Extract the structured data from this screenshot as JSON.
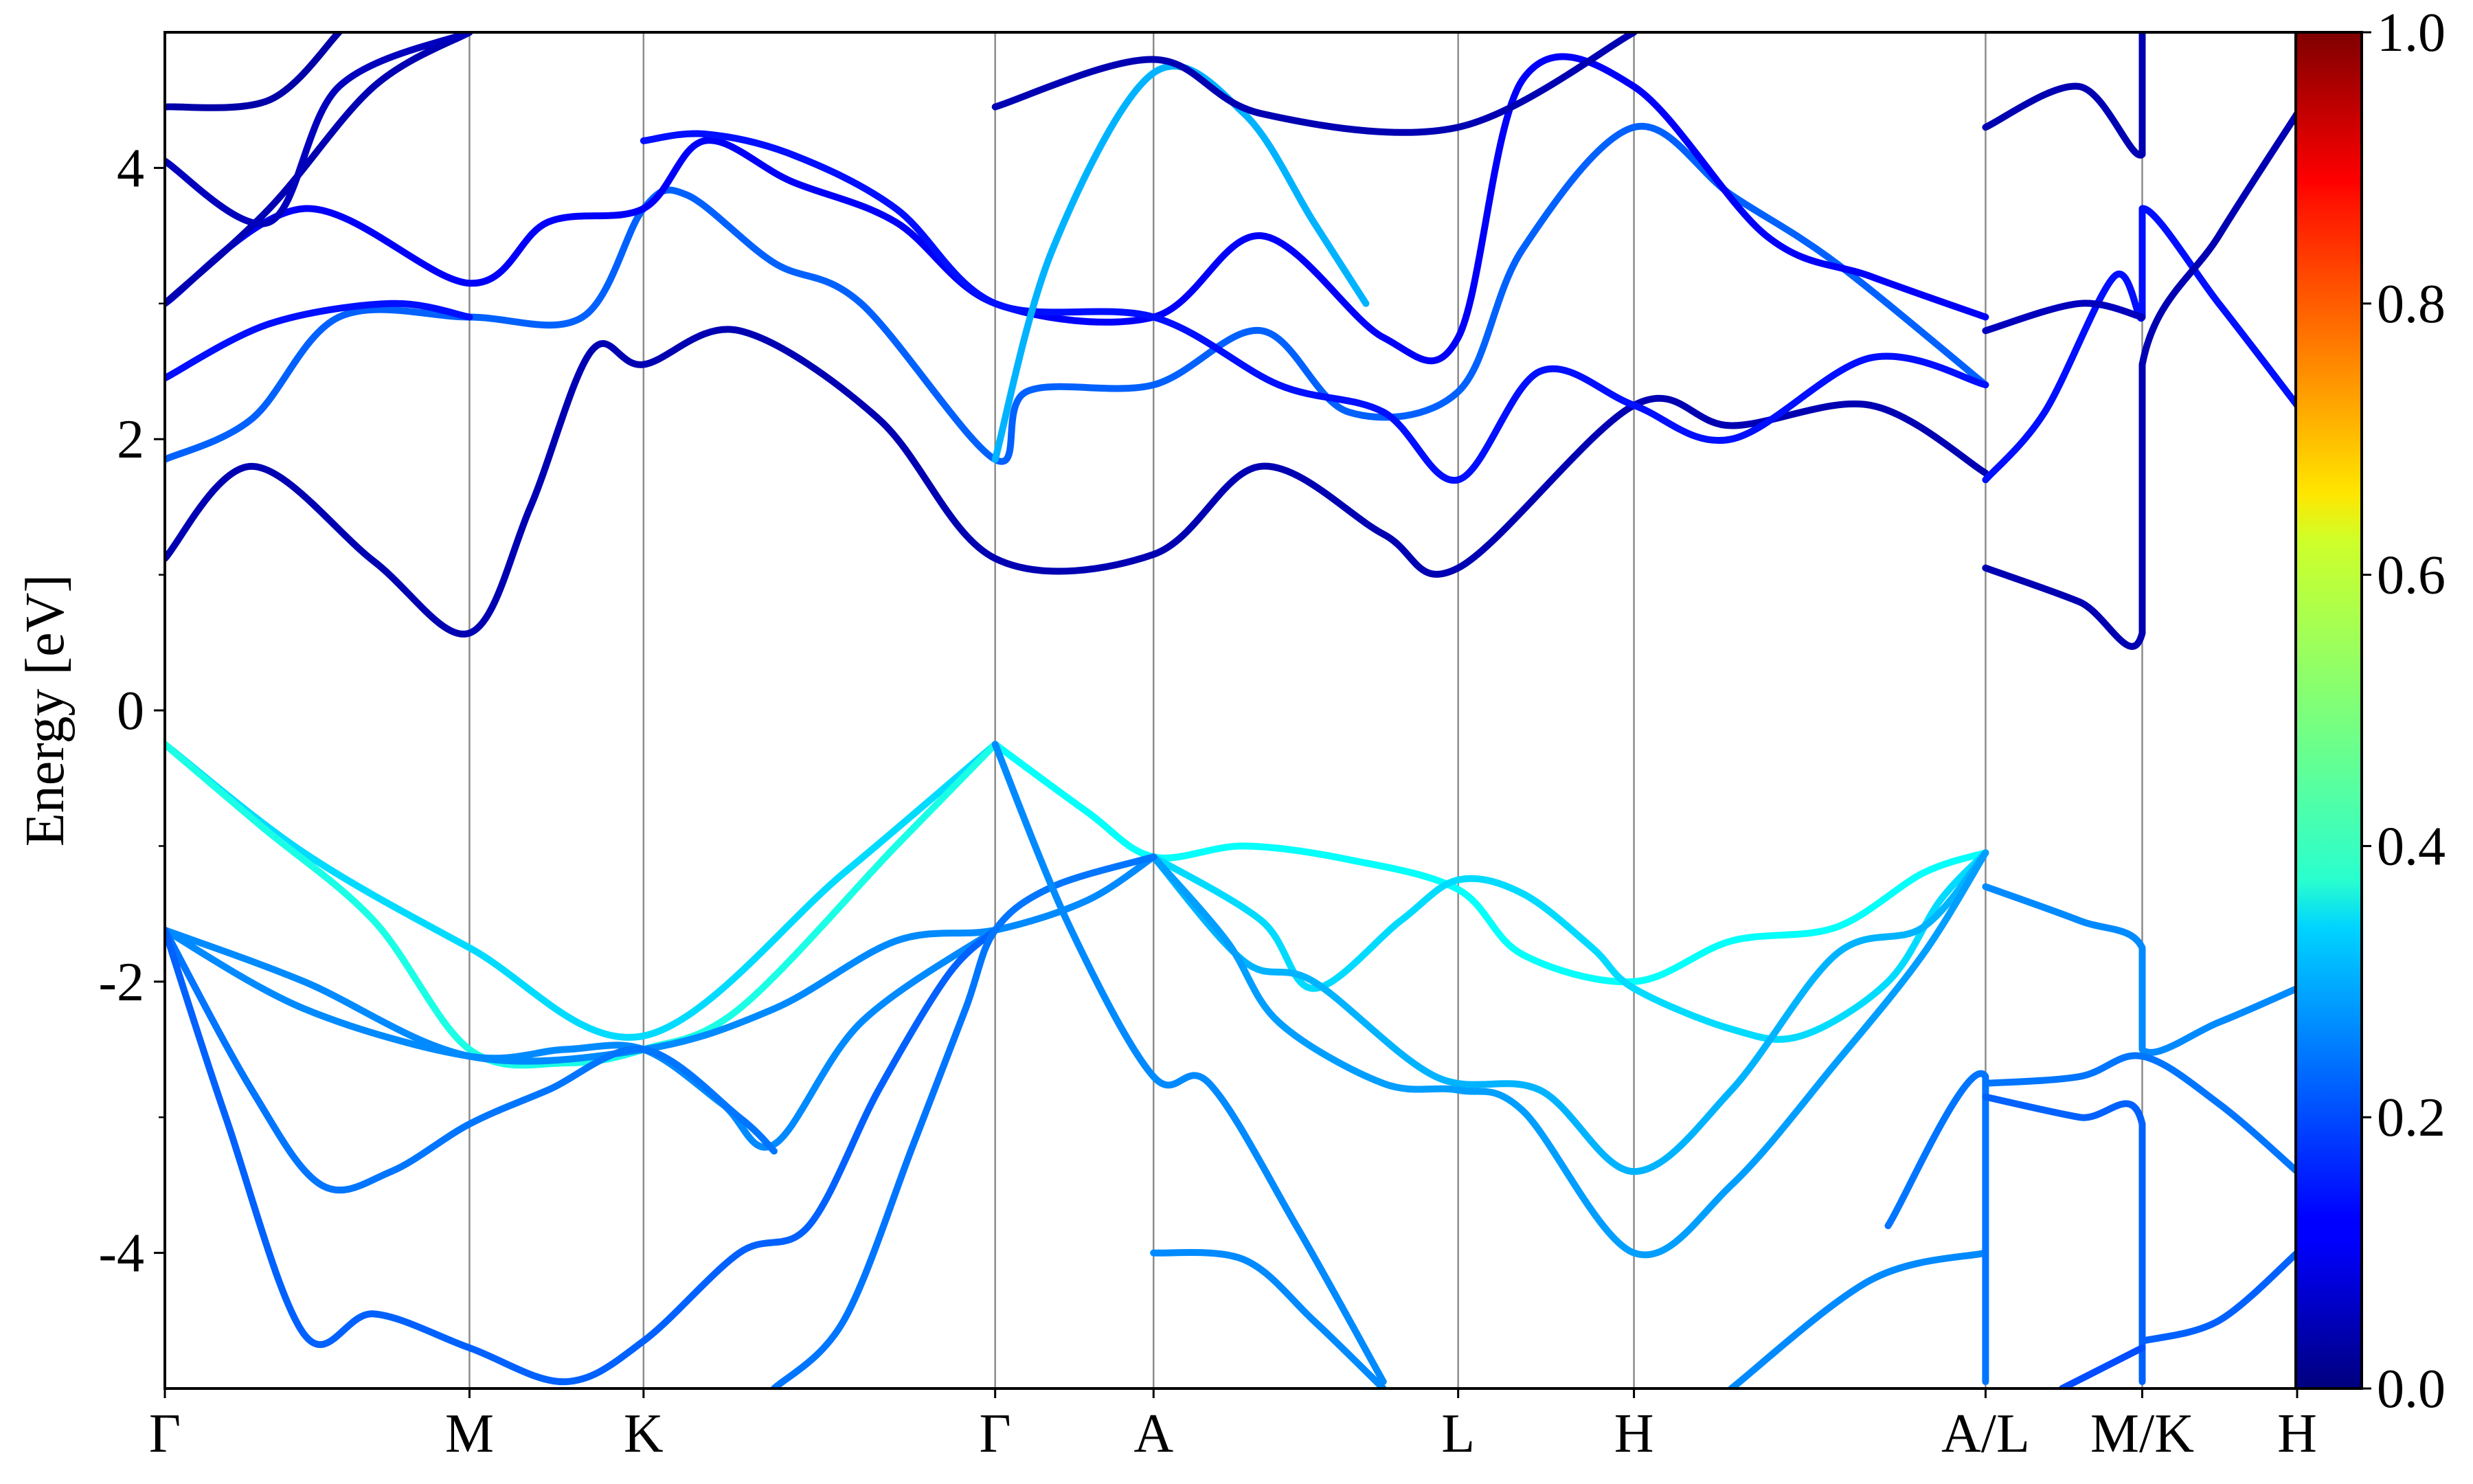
{
  "chart_data": {
    "type": "line",
    "title": "",
    "xlabel": "",
    "ylabel": "Energy [eV]",
    "ylim": [
      -5,
      5
    ],
    "yticks": [
      4,
      2,
      0,
      -2,
      -4
    ],
    "yticks_minor": [
      3,
      1,
      -1,
      -3
    ],
    "ytick_labels": [
      "4",
      "2",
      "0",
      "-2",
      "-4"
    ],
    "xlim": [
      0,
      12.25
    ],
    "kpath": [
      {
        "label": "Γ",
        "x": 0
      },
      {
        "label": "M",
        "x": 1.75
      },
      {
        "label": "K",
        "x": 2.75
      },
      {
        "label": "Γ",
        "x": 4.77
      },
      {
        "label": "A",
        "x": 5.68
      },
      {
        "label": "L",
        "x": 7.43
      },
      {
        "label": "H",
        "x": 8.44
      },
      {
        "label": "A/L",
        "x": 10.46
      },
      {
        "label": "M/K",
        "x": 11.36
      },
      {
        "label": "H",
        "x": 12.25
      }
    ],
    "colorbar": {
      "colormap": "jet",
      "range": [
        0.0,
        1.0
      ],
      "ticks": [
        "0.0",
        "0.2",
        "0.4",
        "0.6",
        "0.8",
        "1.0"
      ],
      "tick_values": [
        0.0,
        0.2,
        0.4,
        0.6,
        0.8,
        1.0
      ]
    },
    "colors": {
      "background": "#ffffff",
      "axes": "#000000",
      "vline": "#8c8c8c"
    },
    "series": [
      {
        "w": 0.34,
        "points": [
          [
            0,
            -0.25
          ],
          [
            0.8,
            -1.05
          ],
          [
            1.75,
            -1.75
          ],
          [
            2.75,
            -2.4
          ],
          [
            3.9,
            -1.2
          ],
          [
            4.77,
            -0.25
          ]
        ]
      },
      {
        "w": 0.4,
        "points": [
          [
            0,
            -0.25
          ],
          [
            0.55,
            -0.85
          ],
          [
            1.2,
            -1.55
          ],
          [
            1.75,
            -2.5
          ],
          [
            2.3,
            -2.6
          ],
          [
            2.75,
            -2.5
          ],
          [
            3.3,
            -2.2
          ],
          [
            4.2,
            -1.0
          ],
          [
            4.77,
            -0.25
          ]
        ]
      },
      {
        "w": 0.38,
        "points": [
          [
            4.77,
            -0.25
          ],
          [
            5.3,
            -0.75
          ],
          [
            5.68,
            -1.08
          ],
          [
            6.2,
            -1.0
          ],
          [
            6.8,
            -1.1
          ],
          [
            7.43,
            -1.32
          ],
          [
            7.8,
            -1.8
          ],
          [
            8.44,
            -2.0
          ],
          [
            9.0,
            -1.7
          ],
          [
            9.6,
            -1.6
          ],
          [
            10.1,
            -1.2
          ],
          [
            10.46,
            -1.05
          ]
        ]
      },
      {
        "w": 0.34,
        "points": [
          [
            5.68,
            -1.08
          ],
          [
            6.3,
            -1.55
          ],
          [
            6.6,
            -2.05
          ],
          [
            7.1,
            -1.55
          ],
          [
            7.43,
            -1.25
          ],
          [
            7.8,
            -1.35
          ],
          [
            8.2,
            -1.75
          ],
          [
            8.44,
            -2.05
          ],
          [
            9.0,
            -2.35
          ],
          [
            9.4,
            -2.4
          ],
          [
            9.9,
            -2.0
          ],
          [
            10.2,
            -1.4
          ],
          [
            10.46,
            -1.05
          ]
        ]
      },
      {
        "w": 0.3,
        "points": [
          [
            5.68,
            -1.08
          ],
          [
            6.2,
            -1.85
          ],
          [
            6.6,
            -2.0
          ],
          [
            7.3,
            -2.7
          ],
          [
            7.9,
            -2.8
          ],
          [
            8.44,
            -3.4
          ],
          [
            9.0,
            -2.8
          ],
          [
            9.6,
            -1.8
          ],
          [
            10.1,
            -1.6
          ],
          [
            10.46,
            -1.05
          ]
        ]
      },
      {
        "w": 0.28,
        "points": [
          [
            5.68,
            -1.08
          ],
          [
            6.1,
            -1.7
          ],
          [
            6.4,
            -2.3
          ],
          [
            7.0,
            -2.75
          ],
          [
            7.43,
            -2.8
          ],
          [
            7.8,
            -2.95
          ],
          [
            8.44,
            -4.0
          ],
          [
            9.0,
            -3.5
          ],
          [
            9.6,
            -2.6
          ],
          [
            10.1,
            -1.8
          ],
          [
            10.46,
            -1.05
          ]
        ]
      },
      {
        "w": 0.26,
        "points": [
          [
            0,
            -1.62
          ],
          [
            0.8,
            -2.0
          ],
          [
            1.75,
            -2.55
          ],
          [
            2.75,
            -2.5
          ],
          [
            3.5,
            -2.2
          ],
          [
            4.2,
            -1.7
          ],
          [
            4.77,
            -1.62
          ],
          [
            5.3,
            -1.4
          ],
          [
            5.68,
            -1.08
          ]
        ]
      },
      {
        "w": 0.26,
        "points": [
          [
            0,
            -1.62
          ],
          [
            0.8,
            -2.2
          ],
          [
            1.75,
            -2.55
          ],
          [
            2.3,
            -2.5
          ],
          [
            2.75,
            -2.5
          ],
          [
            3.2,
            -2.9
          ],
          [
            3.5,
            -3.2
          ],
          [
            4.0,
            -2.3
          ],
          [
            4.77,
            -1.62
          ]
        ]
      },
      {
        "w": 0.24,
        "points": [
          [
            0,
            -1.62
          ],
          [
            0.5,
            -2.8
          ],
          [
            0.9,
            -3.5
          ],
          [
            1.3,
            -3.4
          ],
          [
            1.75,
            -3.05
          ],
          [
            2.2,
            -2.8
          ],
          [
            2.75,
            -2.5
          ],
          [
            3.3,
            -3.0
          ],
          [
            3.5,
            -3.25
          ]
        ]
      },
      {
        "w": 0.22,
        "points": [
          [
            0,
            -1.62
          ],
          [
            0.35,
            -3.0
          ],
          [
            0.8,
            -4.6
          ],
          [
            1.2,
            -4.45
          ],
          [
            1.75,
            -4.7
          ],
          [
            2.3,
            -4.95
          ],
          [
            2.75,
            -4.65
          ],
          [
            3.3,
            -4.0
          ],
          [
            3.7,
            -3.8
          ],
          [
            4.1,
            -2.8
          ],
          [
            4.5,
            -1.95
          ],
          [
            4.77,
            -1.62
          ]
        ]
      },
      {
        "w": 0.24,
        "points": [
          [
            3.5,
            -5.0
          ],
          [
            3.9,
            -4.5
          ],
          [
            4.3,
            -3.2
          ],
          [
            4.6,
            -2.2
          ],
          [
            4.77,
            -1.62
          ],
          [
            5.1,
            -1.3
          ],
          [
            5.68,
            -1.08
          ]
        ]
      },
      {
        "w": 0.26,
        "points": [
          [
            4.77,
            -0.25
          ],
          [
            5.2,
            -1.6
          ],
          [
            5.68,
            -2.7
          ],
          [
            6.0,
            -2.75
          ],
          [
            6.5,
            -3.8
          ],
          [
            7.0,
            -4.95
          ]
        ]
      },
      {
        "w": 0.26,
        "points": [
          [
            5.68,
            -4.0
          ],
          [
            6.2,
            -4.05
          ],
          [
            6.6,
            -4.5
          ],
          [
            7.0,
            -5.0
          ]
        ]
      },
      {
        "w": 0.26,
        "points": [
          [
            9.0,
            -5.0
          ],
          [
            9.8,
            -4.2
          ],
          [
            10.46,
            -4.0
          ]
        ]
      },
      {
        "w": 0.24,
        "points": [
          [
            9.9,
            -3.8
          ],
          [
            10.46,
            -2.7
          ],
          [
            10.46,
            -4.95
          ]
        ]
      },
      {
        "w": 0.26,
        "points": [
          [
            10.46,
            -1.3
          ],
          [
            11.0,
            -1.55
          ],
          [
            11.36,
            -1.75
          ],
          [
            11.36,
            -2.5
          ],
          [
            11.8,
            -2.3
          ],
          [
            12.25,
            -2.05
          ]
        ]
      },
      {
        "w": 0.24,
        "points": [
          [
            10.46,
            -2.75
          ],
          [
            11.0,
            -2.7
          ],
          [
            11.36,
            -2.55
          ],
          [
            11.8,
            -2.9
          ],
          [
            12.25,
            -3.4
          ]
        ]
      },
      {
        "w": 0.22,
        "points": [
          [
            10.46,
            -2.85
          ],
          [
            11.0,
            -3.0
          ],
          [
            11.36,
            -3.05
          ],
          [
            11.36,
            -4.95
          ]
        ]
      },
      {
        "w": 0.22,
        "points": [
          [
            11.36,
            -4.65
          ],
          [
            11.8,
            -4.5
          ],
          [
            12.25,
            -4.0
          ]
        ]
      },
      {
        "w": 0.2,
        "points": [
          [
            10.9,
            -5.0
          ],
          [
            11.36,
            -4.7
          ]
        ]
      },
      {
        "w": 0.05,
        "points": [
          [
            0,
            1.12
          ],
          [
            0.5,
            1.8
          ],
          [
            1.2,
            1.1
          ],
          [
            1.75,
            0.57
          ],
          [
            2.1,
            1.5
          ],
          [
            2.45,
            2.65
          ],
          [
            2.75,
            2.55
          ],
          [
            3.3,
            2.8
          ],
          [
            4.1,
            2.15
          ],
          [
            4.77,
            1.12
          ],
          [
            5.68,
            1.15
          ],
          [
            6.3,
            1.8
          ],
          [
            7.0,
            1.3
          ],
          [
            7.43,
            1.05
          ],
          [
            8.44,
            2.25
          ],
          [
            9.0,
            2.1
          ],
          [
            9.8,
            2.25
          ],
          [
            10.46,
            1.75
          ]
        ]
      },
      {
        "w": 0.22,
        "points": [
          [
            0,
            1.85
          ],
          [
            0.5,
            2.15
          ],
          [
            1.0,
            2.9
          ],
          [
            1.75,
            2.9
          ],
          [
            2.4,
            2.9
          ],
          [
            2.75,
            3.7
          ],
          [
            3.0,
            3.8
          ],
          [
            3.5,
            3.3
          ],
          [
            4.0,
            3.0
          ],
          [
            4.77,
            1.85
          ],
          [
            4.95,
            2.35
          ],
          [
            5.68,
            2.4
          ],
          [
            6.3,
            2.8
          ],
          [
            6.8,
            2.2
          ],
          [
            7.43,
            2.35
          ],
          [
            7.8,
            3.4
          ],
          [
            8.44,
            4.3
          ],
          [
            9.0,
            3.8
          ],
          [
            9.6,
            3.3
          ],
          [
            10.46,
            2.4
          ]
        ]
      },
      {
        "w": 0.14,
        "points": [
          [
            0,
            2.45
          ],
          [
            0.6,
            2.85
          ],
          [
            1.3,
            3.0
          ],
          [
            1.75,
            2.9
          ]
        ]
      },
      {
        "w": 0.12,
        "points": [
          [
            0,
            3.0
          ],
          [
            0.8,
            3.7
          ],
          [
            1.75,
            3.15
          ],
          [
            2.2,
            3.6
          ],
          [
            2.75,
            3.7
          ],
          [
            3.1,
            4.2
          ],
          [
            3.6,
            3.9
          ],
          [
            4.2,
            3.6
          ],
          [
            4.77,
            3.0
          ],
          [
            5.68,
            2.9
          ],
          [
            6.3,
            3.5
          ],
          [
            7.0,
            2.75
          ],
          [
            7.43,
            2.75
          ],
          [
            7.8,
            4.65
          ],
          [
            8.44,
            4.6
          ],
          [
            9.2,
            3.5
          ],
          [
            9.8,
            3.2
          ],
          [
            10.46,
            2.9
          ]
        ]
      },
      {
        "w": 0.05,
        "points": [
          [
            0,
            3.0
          ],
          [
            0.6,
            3.7
          ],
          [
            1.2,
            4.6
          ],
          [
            1.75,
            5.0
          ]
        ]
      },
      {
        "w": 0.04,
        "points": [
          [
            0,
            4.45
          ],
          [
            0.6,
            4.5
          ],
          [
            1.0,
            5.0
          ]
        ]
      },
      {
        "w": 0.06,
        "points": [
          [
            0,
            4.05
          ],
          [
            0.6,
            3.6
          ],
          [
            1.0,
            4.6
          ],
          [
            1.75,
            5.0
          ]
        ]
      },
      {
        "w": 0.14,
        "points": [
          [
            2.75,
            4.2
          ],
          [
            3.1,
            4.25
          ],
          [
            3.6,
            4.1
          ],
          [
            4.2,
            3.7
          ],
          [
            4.77,
            3.0
          ],
          [
            5.68,
            2.9
          ],
          [
            6.4,
            2.4
          ],
          [
            7.0,
            2.2
          ],
          [
            7.43,
            1.7
          ],
          [
            7.9,
            2.5
          ],
          [
            8.44,
            2.25
          ],
          [
            9.0,
            2.0
          ],
          [
            9.8,
            2.6
          ],
          [
            10.46,
            2.4
          ]
        ]
      },
      {
        "w": 0.3,
        "points": [
          [
            4.77,
            1.85
          ],
          [
            5.1,
            3.4
          ],
          [
            5.68,
            4.7
          ],
          [
            6.2,
            4.4
          ],
          [
            6.6,
            3.6
          ],
          [
            6.9,
            3.0
          ]
        ]
      },
      {
        "w": 0.05,
        "points": [
          [
            4.77,
            4.45
          ],
          [
            5.68,
            4.8
          ],
          [
            6.3,
            4.4
          ],
          [
            7.43,
            4.3
          ],
          [
            8.44,
            5.0
          ]
        ]
      },
      {
        "w": 0.14,
        "points": [
          [
            10.46,
            1.7
          ],
          [
            10.8,
            2.2
          ],
          [
            11.2,
            3.2
          ],
          [
            11.36,
            2.9
          ],
          [
            11.36,
            3.7
          ],
          [
            11.8,
            3.0
          ],
          [
            12.25,
            2.25
          ]
        ]
      },
      {
        "w": 0.06,
        "points": [
          [
            10.46,
            2.8
          ],
          [
            11.0,
            3.0
          ],
          [
            11.36,
            2.9
          ]
        ]
      },
      {
        "w": 0.05,
        "points": [
          [
            10.46,
            1.05
          ],
          [
            11.0,
            0.8
          ],
          [
            11.36,
            0.57
          ],
          [
            11.36,
            2.55
          ],
          [
            11.8,
            3.5
          ],
          [
            12.25,
            4.4
          ]
        ]
      },
      {
        "w": 0.05,
        "points": [
          [
            10.46,
            4.3
          ],
          [
            11.0,
            4.6
          ],
          [
            11.36,
            4.1
          ],
          [
            11.36,
            5.0
          ]
        ]
      }
    ]
  }
}
